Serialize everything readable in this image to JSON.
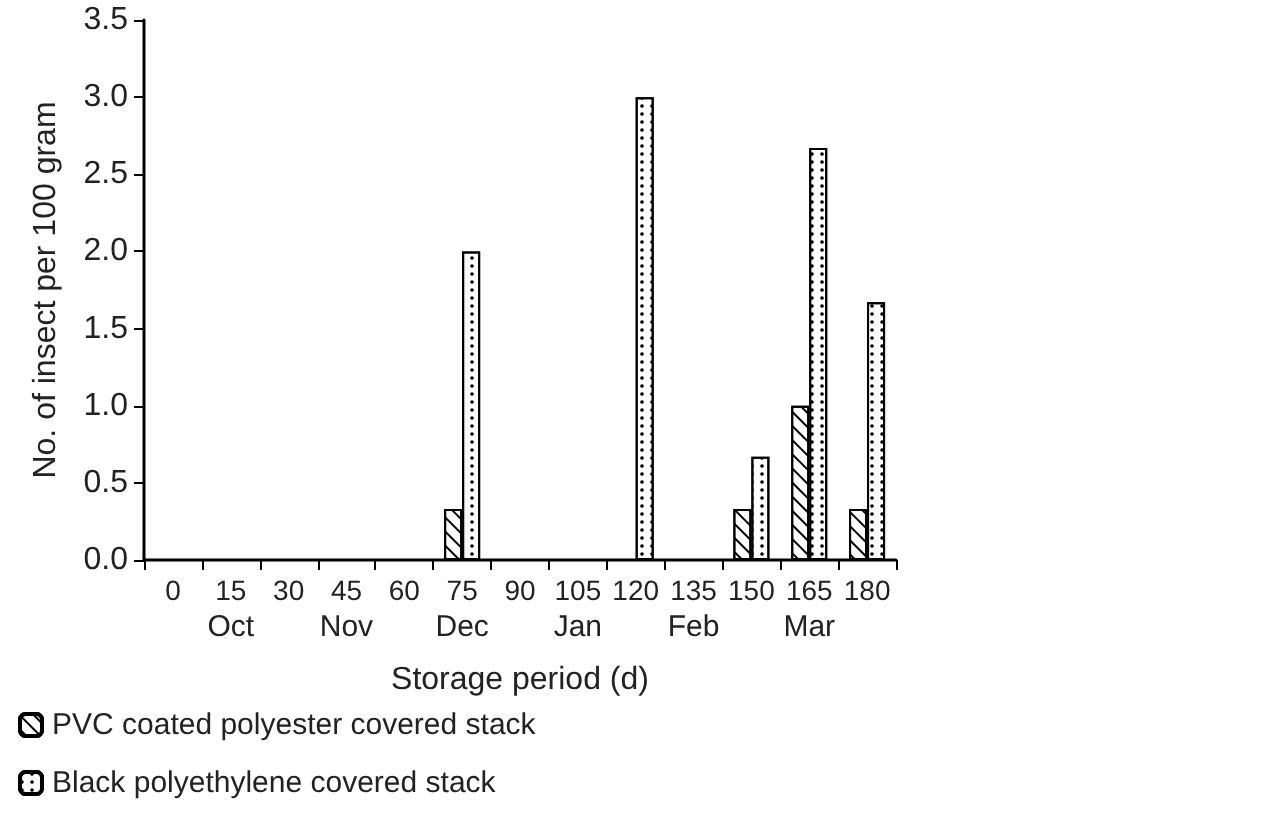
{
  "chart_data": {
    "type": "bar",
    "xlabel": "Storage period (d)",
    "ylabel": "No. of insect per 100 gram",
    "categories": [
      "0",
      "15",
      "30",
      "45",
      "60",
      "75",
      "90",
      "105",
      "120",
      "135",
      "150",
      "165",
      "180"
    ],
    "series": [
      {
        "name": "PVC coated polyester covered stack",
        "color": "#ffffff",
        "values": [
          0,
          0,
          0,
          0,
          0,
          0.33,
          0,
          0,
          0,
          0,
          0.33,
          1.0,
          0.33
        ]
      },
      {
        "name": "Black polyethylene covered stack",
        "color": "#ffffff",
        "values": [
          0,
          0,
          0,
          0,
          0,
          2.0,
          0,
          0,
          3.0,
          0,
          0.67,
          2.67,
          1.67
        ]
      }
    ],
    "ylim": [
      0,
      3.5
    ],
    "yticks": [
      {
        "value": 0,
        "label": "0.0"
      },
      {
        "value": 0.5,
        "label": "0.5"
      },
      {
        "value": 1,
        "label": "1.0"
      },
      {
        "value": 1.5,
        "label": "1.5"
      },
      {
        "value": 2,
        "label": "2.0"
      },
      {
        "value": 2.5,
        "label": "2.5"
      },
      {
        "value": 3,
        "label": "3.0"
      },
      {
        "value": 3.5,
        "label": "3.5"
      }
    ],
    "annotations": [
      "Oct",
      "Nov",
      "Dec",
      "Jan",
      "Feb",
      "Mar"
    ],
    "grid": false,
    "legend": "bottom left"
  }
}
